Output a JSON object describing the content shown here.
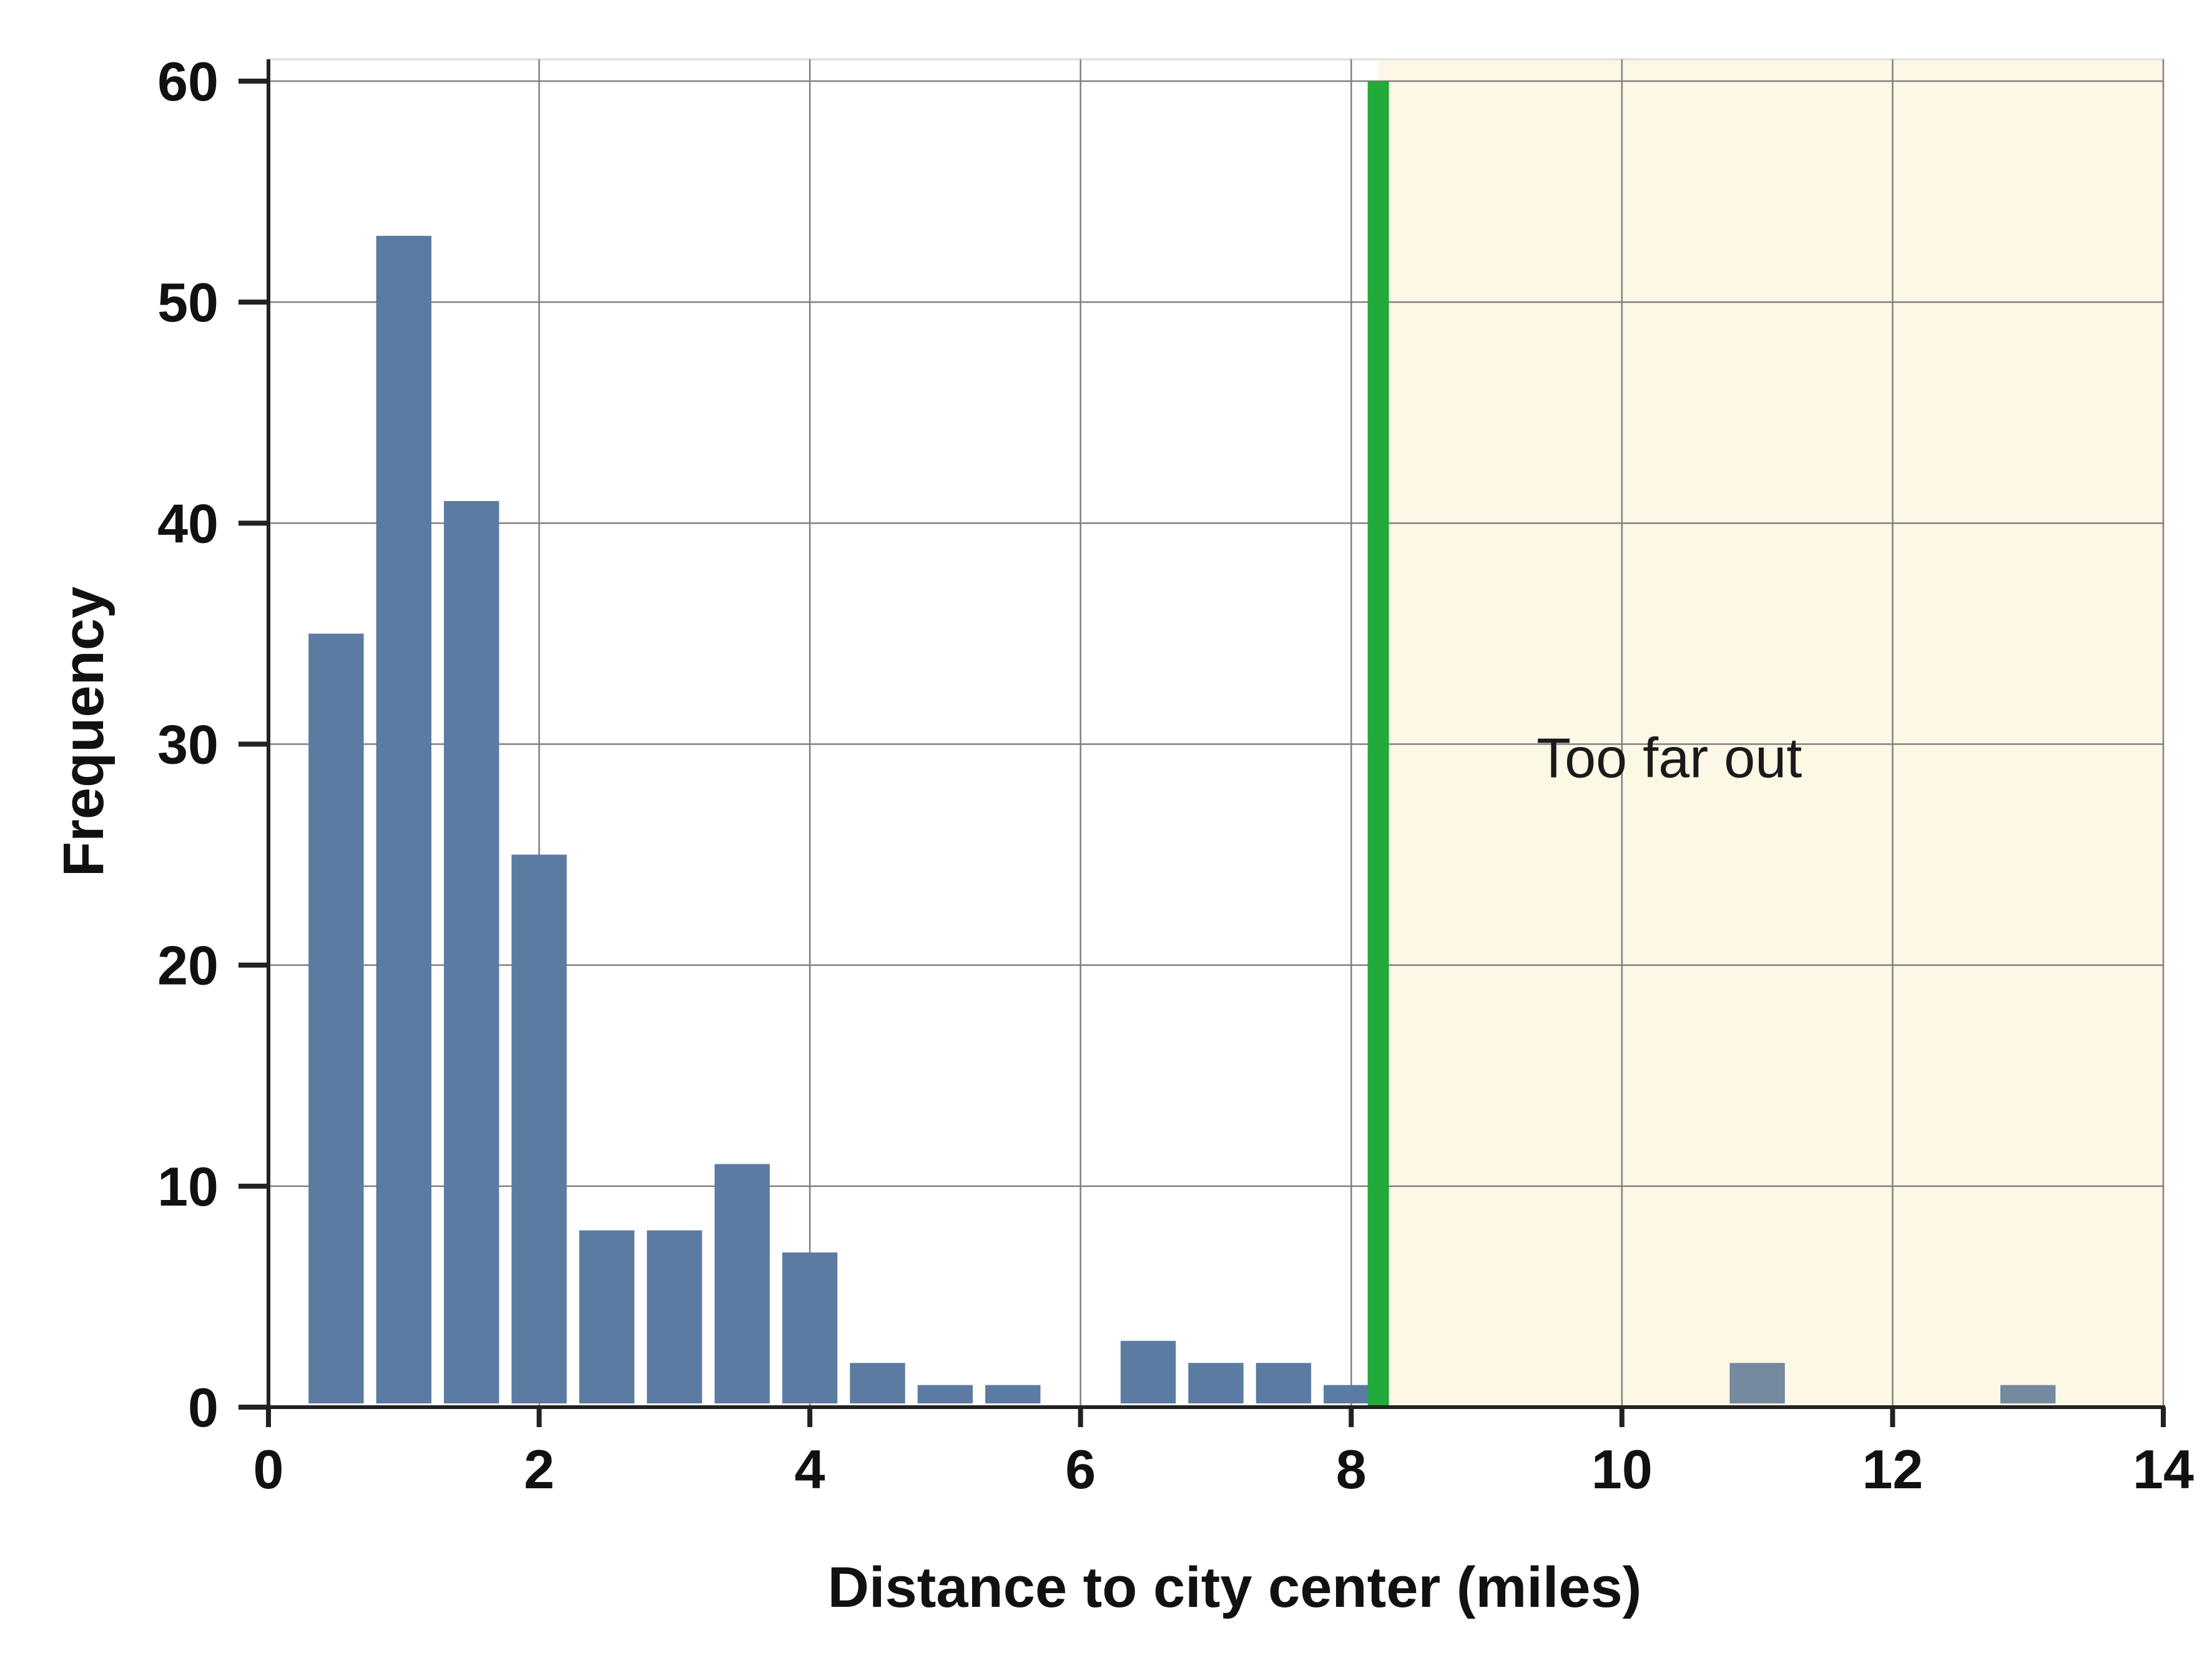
{
  "chart_data": {
    "type": "bar",
    "xlabel": "Distance to city center (miles)",
    "ylabel": "Frequency",
    "xlim": [
      0,
      14
    ],
    "ylim": [
      0,
      60
    ],
    "xticks": [
      0,
      2,
      4,
      6,
      8,
      10,
      12,
      14
    ],
    "yticks": [
      0,
      10,
      20,
      30,
      40,
      50,
      60
    ],
    "grid": true,
    "bin_width": 0.5,
    "bins": [
      {
        "x": 0.5,
        "value": 35
      },
      {
        "x": 1.0,
        "value": 53
      },
      {
        "x": 1.5,
        "value": 41
      },
      {
        "x": 2.0,
        "value": 25
      },
      {
        "x": 2.5,
        "value": 8
      },
      {
        "x": 3.0,
        "value": 8
      },
      {
        "x": 3.5,
        "value": 11
      },
      {
        "x": 4.0,
        "value": 7
      },
      {
        "x": 4.5,
        "value": 2
      },
      {
        "x": 5.0,
        "value": 1
      },
      {
        "x": 5.5,
        "value": 1
      },
      {
        "x": 6.5,
        "value": 3
      },
      {
        "x": 7.0,
        "value": 2
      },
      {
        "x": 7.5,
        "value": 2
      },
      {
        "x": 8.0,
        "value": 1
      },
      {
        "x": 11.0,
        "value": 2
      },
      {
        "x": 13.0,
        "value": 1
      }
    ],
    "threshold": 8.2,
    "shaded_region": {
      "from": 8.2,
      "to": 14,
      "label": "Too far out"
    },
    "colors": {
      "bar": "#5b7ba3",
      "bar_in_region": "#75899f",
      "threshold_line": "#22aa3a",
      "region_fill": "#fdf8e6",
      "grid": "#808080",
      "axis": "#222222"
    }
  }
}
